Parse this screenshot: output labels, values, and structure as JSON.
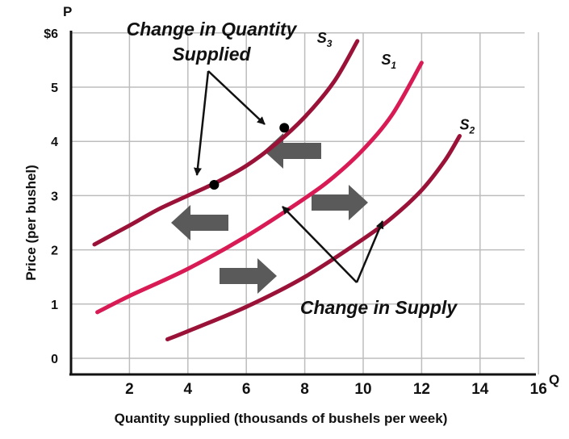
{
  "chart_data": {
    "type": "line",
    "x_axis_name": "Q",
    "y_axis_name": "P",
    "xlabel": "Quantity supplied (thousands of bushels per week)",
    "ylabel": "Price (per bushel)",
    "x_ticks": [
      "2",
      "4",
      "6",
      "8",
      "10",
      "12",
      "14",
      "16"
    ],
    "y_ticks": [
      "0",
      "1",
      "2",
      "3",
      "4",
      "5",
      "$6"
    ],
    "xlim": [
      0,
      16
    ],
    "ylim": [
      -0.2,
      6
    ],
    "grid": true,
    "series": [
      {
        "name": "S",
        "sub": "3",
        "color": "#9a1238",
        "x": [
          0.8,
          2,
          3,
          4,
          5,
          6,
          7,
          8,
          9,
          9.8
        ],
        "y": [
          2.1,
          2.45,
          2.75,
          3.0,
          3.25,
          3.55,
          3.95,
          4.45,
          5.1,
          5.85
        ]
      },
      {
        "name": "S",
        "sub": "1",
        "color": "#d81a55",
        "x": [
          0.9,
          2,
          4,
          6,
          8,
          9,
          10,
          11,
          12
        ],
        "y": [
          0.85,
          1.15,
          1.65,
          2.25,
          2.95,
          3.35,
          3.85,
          4.5,
          5.45
        ]
      },
      {
        "name": "S",
        "sub": "2",
        "color": "#9a1238",
        "x": [
          3.3,
          4,
          6,
          8,
          10,
          11,
          12,
          12.8,
          13.3
        ],
        "y": [
          0.35,
          0.5,
          0.95,
          1.5,
          2.2,
          2.6,
          3.1,
          3.65,
          4.1
        ]
      }
    ],
    "points": [
      {
        "x": 7.3,
        "y": 4.25
      },
      {
        "x": 4.9,
        "y": 3.2
      }
    ],
    "annotations": {
      "quantity_title_line1": "Change in Quantity",
      "quantity_title_line2": "Supplied",
      "supply_title": "Change in Supply"
    }
  }
}
